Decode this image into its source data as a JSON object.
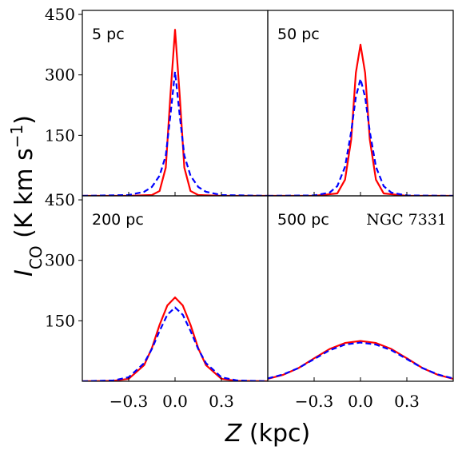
{
  "chart_data": {
    "type": "line",
    "xlabel": "Z (kpc)",
    "ylabel": "I_CO (K km s^-1)",
    "xlim": [
      -0.6,
      0.6
    ],
    "ylim": [
      0,
      460
    ],
    "xticks": [
      -0.3,
      0.0,
      0.3
    ],
    "xtick_labels": [
      "−0.3",
      "0.0",
      "0.3"
    ],
    "yticks": [
      150,
      300,
      450
    ],
    "ytick_labels": [
      "150",
      "300",
      "450"
    ],
    "grid": false,
    "layout": "2x2 shared axes",
    "series_styles": [
      {
        "color": "#ff0000",
        "dash": "solid"
      },
      {
        "color": "#0000ff",
        "dash": "dashed"
      }
    ],
    "panels": [
      {
        "label": "5 pc",
        "extra_label": "",
        "series": [
          {
            "x": [
              -0.6,
              -0.3,
              -0.15,
              -0.1,
              -0.06,
              -0.03,
              0.0,
              0.03,
              0.06,
              0.1,
              0.15,
              0.3,
              0.6
            ],
            "y": [
              0,
              0,
              2,
              12,
              70,
              250,
              412,
              250,
              70,
              12,
              2,
              0,
              0
            ]
          },
          {
            "x": [
              -0.6,
              -0.3,
              -0.2,
              -0.15,
              -0.1,
              -0.06,
              -0.03,
              0.0,
              0.03,
              0.06,
              0.1,
              0.15,
              0.2,
              0.3,
              0.6
            ],
            "y": [
              0,
              2,
              10,
              22,
              50,
              100,
              200,
              308,
              200,
              100,
              50,
              22,
              10,
              2,
              0
            ]
          }
        ]
      },
      {
        "label": "50 pc",
        "extra_label": "",
        "series": [
          {
            "x": [
              -0.6,
              -0.3,
              -0.15,
              -0.1,
              -0.06,
              -0.03,
              0.0,
              0.03,
              0.06,
              0.1,
              0.15,
              0.3,
              0.6
            ],
            "y": [
              0,
              0,
              6,
              40,
              140,
              305,
              375,
              305,
              140,
              40,
              6,
              0,
              0
            ]
          },
          {
            "x": [
              -0.6,
              -0.3,
              -0.2,
              -0.15,
              -0.1,
              -0.06,
              -0.03,
              0.0,
              0.03,
              0.06,
              0.1,
              0.15,
              0.2,
              0.3,
              0.6
            ],
            "y": [
              0,
              1,
              8,
              24,
              72,
              160,
              245,
              290,
              245,
              160,
              72,
              24,
              8,
              1,
              0
            ]
          }
        ]
      },
      {
        "label": "200 pc",
        "extra_label": "",
        "series": [
          {
            "x": [
              -0.6,
              -0.4,
              -0.3,
              -0.2,
              -0.15,
              -0.1,
              -0.05,
              0.0,
              0.05,
              0.1,
              0.15,
              0.2,
              0.3,
              0.4,
              0.6
            ],
            "y": [
              0,
              1,
              6,
              40,
              82,
              140,
              188,
              208,
              188,
              140,
              82,
              40,
              6,
              1,
              0
            ]
          },
          {
            "x": [
              -0.6,
              -0.4,
              -0.3,
              -0.2,
              -0.15,
              -0.1,
              -0.05,
              0.0,
              0.05,
              0.1,
              0.15,
              0.2,
              0.3,
              0.4,
              0.6
            ],
            "y": [
              0,
              2,
              10,
              45,
              80,
              125,
              165,
              183,
              165,
              125,
              80,
              45,
              10,
              2,
              0
            ]
          }
        ]
      },
      {
        "label": "500 pc",
        "extra_label": "NGC 7331",
        "series": [
          {
            "x": [
              -0.6,
              -0.5,
              -0.4,
              -0.3,
              -0.2,
              -0.1,
              0.0,
              0.1,
              0.2,
              0.3,
              0.4,
              0.5,
              0.6
            ],
            "y": [
              6,
              16,
              33,
              57,
              80,
              95,
              100,
              95,
              80,
              57,
              33,
              16,
              6
            ]
          },
          {
            "x": [
              -0.6,
              -0.5,
              -0.4,
              -0.3,
              -0.2,
              -0.1,
              0.0,
              0.1,
              0.2,
              0.3,
              0.4,
              0.5,
              0.6
            ],
            "y": [
              7,
              17,
              33,
              55,
              77,
              91,
              96,
              91,
              77,
              55,
              33,
              17,
              7
            ]
          }
        ]
      }
    ]
  }
}
